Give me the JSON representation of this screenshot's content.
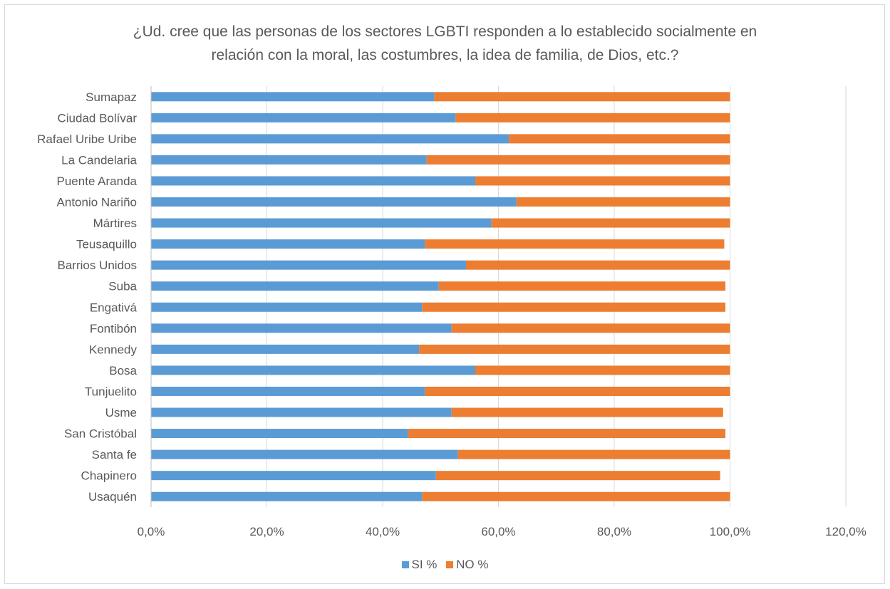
{
  "chart_data": {
    "type": "bar",
    "orientation": "horizontal",
    "stacked": true,
    "title_lines": [
      "¿Ud. cree que las personas de los sectores LGBTI responden a lo establecido socialmente en",
      "relación con la moral, las costumbres, la idea de familia, de Dios, etc.?"
    ],
    "categories": [
      "Sumapaz",
      "Ciudad Bolívar",
      "Rafael Uribe Uribe",
      "La Candelaria",
      "Puente Aranda",
      "Antonio Nariño",
      "Mártires",
      "Teusaquillo",
      "Barrios Unidos",
      "Suba",
      "Engativá",
      "Fontibón",
      "Kennedy",
      "Bosa",
      "Tunjuelito",
      "Usme",
      "San Cristóbal",
      "Santa fe",
      "Chapinero",
      "Usaquén"
    ],
    "series": [
      {
        "name": "SI %",
        "color": "#5b9bd5",
        "values": [
          48.9,
          52.6,
          61.8,
          47.6,
          56.0,
          63.1,
          58.8,
          47.3,
          54.4,
          49.7,
          46.8,
          51.9,
          46.3,
          56.0,
          47.3,
          51.9,
          44.4,
          53.0,
          49.2,
          46.8
        ]
      },
      {
        "name": "NO %",
        "color": "#ed7d31",
        "values": [
          51.1,
          47.4,
          38.2,
          52.4,
          44.0,
          36.9,
          41.2,
          51.7,
          45.6,
          49.5,
          52.4,
          48.1,
          53.7,
          44.0,
          52.7,
          46.9,
          54.8,
          47.0,
          49.1,
          53.2
        ]
      }
    ],
    "xlim": [
      0,
      120
    ],
    "x_ticks": [
      "0,0%",
      "20,0%",
      "40,0%",
      "60,0%",
      "80,0%",
      "100,0%",
      "120,0%"
    ],
    "grid": true,
    "legend_position": "bottom"
  }
}
